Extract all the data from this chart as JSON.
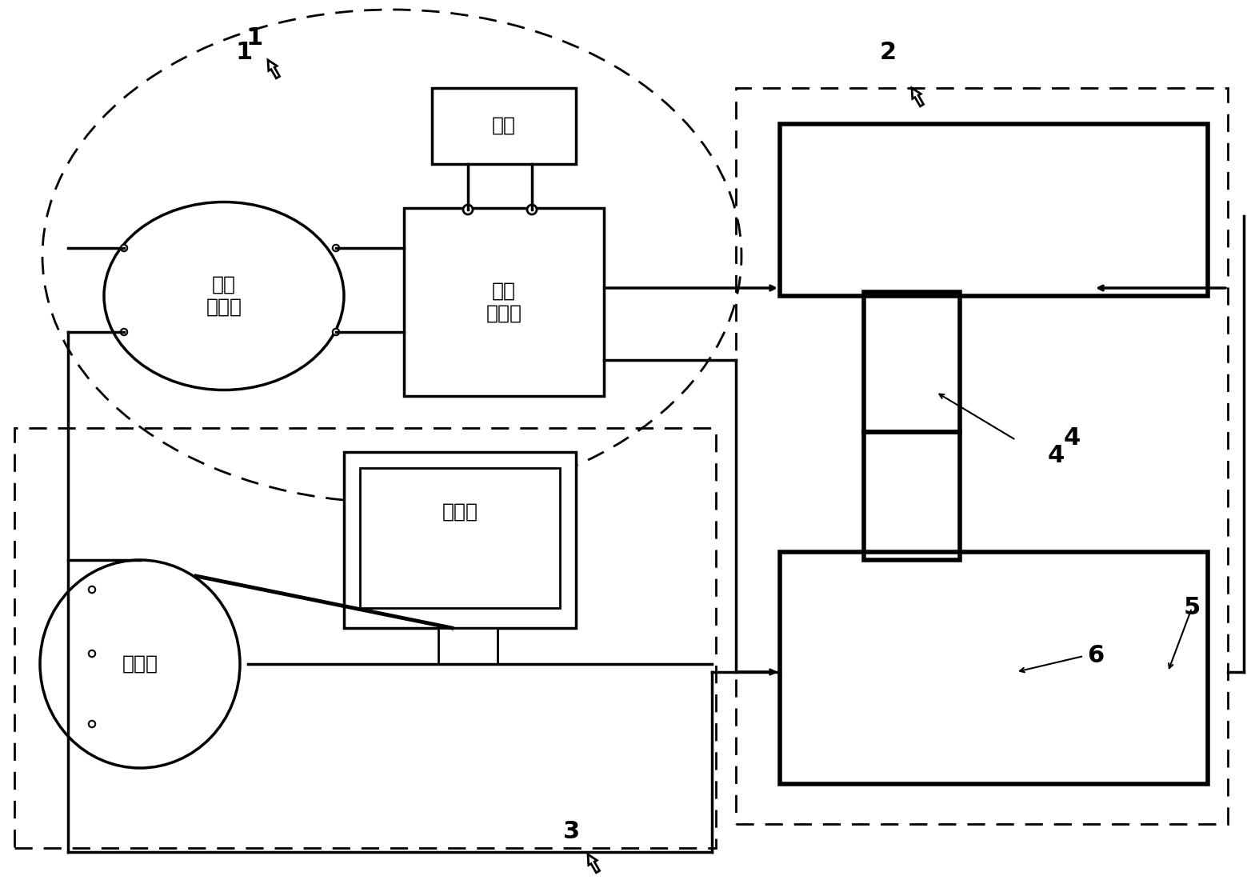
{
  "bg_color": "#ffffff",
  "line_color": "#000000",
  "dashed_color": "#000000",
  "text_color": "#000000",
  "labels": {
    "power_supply": "电源",
    "amplifier": "功率\n放大器",
    "signal_gen": "信号\n发生器",
    "computer": "计算机",
    "oscilloscope": "示波器",
    "label1": "1",
    "label2": "2",
    "label3": "3",
    "label4": "4",
    "label5": "5",
    "label6": "6"
  },
  "font_size_main": 18,
  "font_size_label": 22
}
